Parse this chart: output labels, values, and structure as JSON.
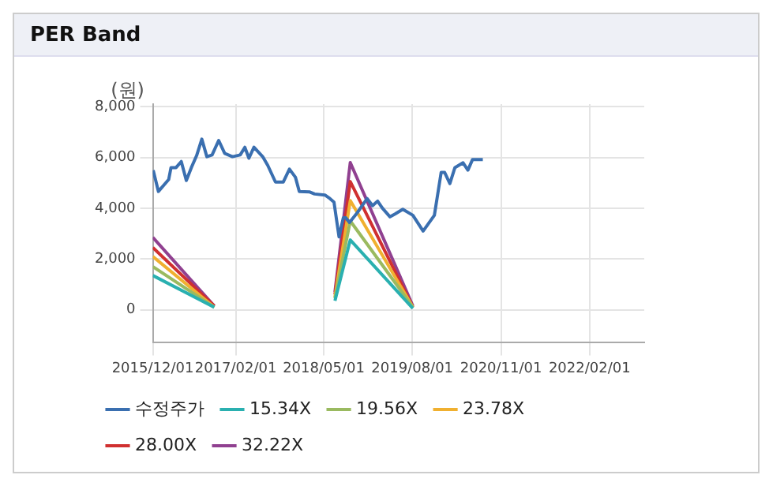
{
  "chart_data": {
    "type": "line",
    "title": "PER Band",
    "ylabel": "(원)",
    "xlim": [
      "2015-12-01",
      "2022-11-10"
    ],
    "ylim": [
      -1300,
      8100
    ],
    "xticks": [
      {
        "value": "2015-12-01",
        "label": "2015/12/01"
      },
      {
        "value": "2017-02-01",
        "label": "2017/02/01"
      },
      {
        "value": "2018-05-01",
        "label": "2018/05/01"
      },
      {
        "value": "2019-08-01",
        "label": "2019/08/01"
      },
      {
        "value": "2020-11-01",
        "label": "2020/11/01"
      },
      {
        "value": "2022-02-01",
        "label": "2022/02/01"
      }
    ],
    "yticks": [
      {
        "value": 0,
        "label": "0"
      },
      {
        "value": 2000,
        "label": "2,000"
      },
      {
        "value": 4000,
        "label": "4,000"
      },
      {
        "value": 6000,
        "label": "6,000"
      },
      {
        "value": 8000,
        "label": "8,000"
      }
    ],
    "grid": true,
    "legend": "bottom",
    "marker": "none",
    "line_style": "solid",
    "series": [
      {
        "name": "수정주가",
        "color": "#3a6fb0",
        "x": [
          "2015-12-03",
          "2015-12-30",
          "2016-02-21",
          "2016-03-04",
          "2016-03-30",
          "2016-04-26",
          "2016-05-22",
          "2016-06-17",
          "2016-07-14",
          "2016-08-10",
          "2016-09-05",
          "2016-10-02",
          "2016-11-05",
          "2016-12-06",
          "2017-01-15",
          "2017-02-24",
          "2017-03-20",
          "2017-04-10",
          "2017-05-06",
          "2017-06-20",
          "2017-07-16",
          "2017-08-25",
          "2017-10-04",
          "2017-11-05",
          "2017-12-06",
          "2017-12-26",
          "2018-02-18",
          "2018-03-15",
          "2018-05-07",
          "2018-06-02",
          "2018-06-23",
          "2018-07-19",
          "2018-08-10",
          "2018-08-23",
          "2018-09-11",
          "2018-10-20",
          "2018-12-11",
          "2019-01-08",
          "2019-02-03",
          "2019-02-28",
          "2019-04-08",
          "2019-05-04",
          "2019-06-13",
          "2019-08-04",
          "2019-09-26",
          "2019-11-23",
          "2019-12-28",
          "2020-01-15",
          "2020-02-11",
          "2020-03-08",
          "2020-04-19",
          "2020-05-14",
          "2020-06-07",
          "2020-07-12",
          "2020-07-30"
        ],
        "values": [
          5500,
          4660,
          5130,
          5600,
          5600,
          5840,
          5090,
          5600,
          6070,
          6720,
          6030,
          6100,
          6670,
          6160,
          6030,
          6100,
          6400,
          5970,
          6400,
          6030,
          5690,
          5030,
          5030,
          5540,
          5220,
          4660,
          4640,
          4560,
          4520,
          4380,
          4240,
          2870,
          3620,
          3620,
          3440,
          3810,
          4380,
          4100,
          4280,
          4000,
          3660,
          3770,
          3960,
          3720,
          3100,
          3720,
          5410,
          5410,
          4970,
          5600,
          5790,
          5500,
          5920,
          5920,
          5920
        ]
      },
      {
        "name": "15.34X",
        "color": "#2ab0b0",
        "x": [
          "2015-12-01",
          "2016-10-13",
          "2017-06-01",
          "2018-06-28",
          "2018-09-15",
          "2019-08-04"
        ],
        "values": [
          1350,
          100,
          null,
          350,
          2750,
          50
        ]
      },
      {
        "name": "19.56X",
        "color": "#9aba60",
        "x": [
          "2015-12-01",
          "2016-10-13",
          "2017-06-01",
          "2018-06-28",
          "2018-09-15",
          "2019-08-04"
        ],
        "values": [
          1700,
          100,
          null,
          450,
          3500,
          100
        ]
      },
      {
        "name": "23.78X",
        "color": "#f0b030",
        "x": [
          "2015-12-01",
          "2016-10-13",
          "2017-06-01",
          "2018-06-28",
          "2018-09-15",
          "2019-08-04"
        ],
        "values": [
          2100,
          100,
          null,
          500,
          4300,
          100
        ]
      },
      {
        "name": "28.00X",
        "color": "#d03030",
        "x": [
          "2015-12-01",
          "2016-10-13",
          "2017-06-01",
          "2018-06-28",
          "2018-09-15",
          "2019-08-04"
        ],
        "values": [
          2450,
          150,
          null,
          600,
          5050,
          100
        ]
      },
      {
        "name": "32.22X",
        "color": "#904090",
        "x": [
          "2015-12-01",
          "2016-10-13",
          "2017-06-01",
          "2018-06-28",
          "2018-09-15",
          "2019-08-04"
        ],
        "values": [
          2850,
          150,
          null,
          700,
          5800,
          150
        ]
      }
    ]
  }
}
